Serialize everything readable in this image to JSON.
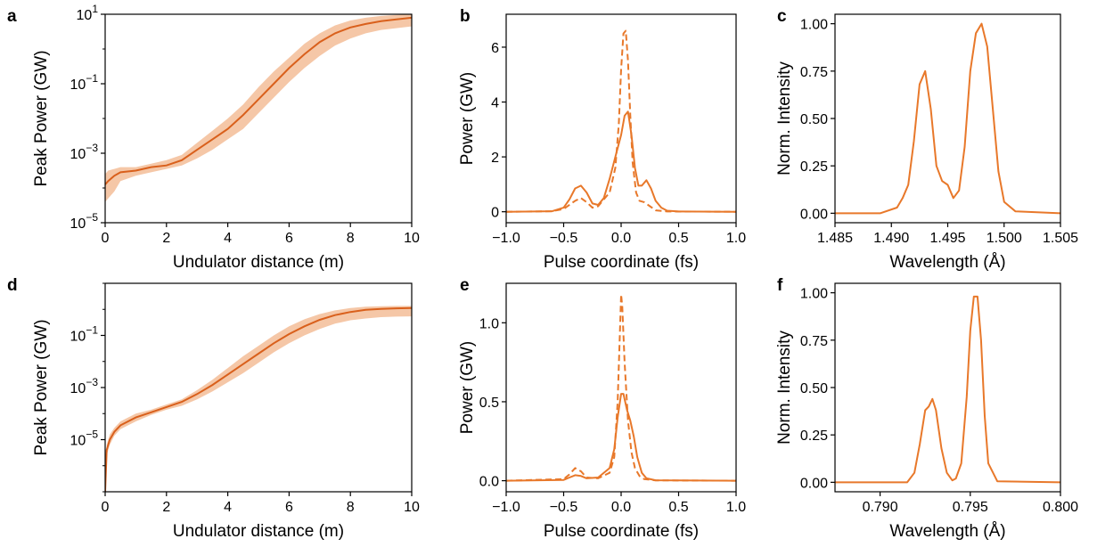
{
  "colors": {
    "line": "#e8782a",
    "band": "#f2b48a",
    "axis": "#000000"
  },
  "chart_data": [
    {
      "id": "a",
      "type": "line",
      "letter": "a",
      "xlabel": "Undulator distance (m)",
      "ylabel": "Peak Power (GW)",
      "xlim": [
        0,
        10
      ],
      "yscale": "log",
      "ylim_exp": [
        -5,
        1
      ],
      "xticks": [
        0,
        2,
        4,
        6,
        8,
        10
      ],
      "xtick_labels": [
        "0",
        "2",
        "4",
        "6",
        "8",
        "10"
      ],
      "yticks_exp": [
        -5,
        -3,
        -1,
        1
      ],
      "ytick_labels": [
        [
          "10",
          "−5"
        ],
        [
          "10",
          "−3"
        ],
        [
          "10",
          "−1"
        ],
        [
          "10",
          "1"
        ]
      ],
      "series": [
        {
          "style": "band-line",
          "x": [
            0,
            0.1,
            0.3,
            0.5,
            1,
            1.5,
            2,
            2.5,
            3,
            3.5,
            4,
            4.5,
            5,
            5.5,
            6,
            6.5,
            7,
            7.5,
            8,
            8.5,
            9,
            9.5,
            10
          ],
          "y_exp": [
            -3.9,
            -3.8,
            -3.65,
            -3.55,
            -3.5,
            -3.4,
            -3.35,
            -3.2,
            -2.9,
            -2.6,
            -2.3,
            -1.9,
            -1.45,
            -1.0,
            -0.55,
            -0.15,
            0.2,
            0.45,
            0.62,
            0.72,
            0.8,
            0.85,
            0.9
          ],
          "lo_exp": [
            -4.4,
            -4.3,
            -4.1,
            -3.8,
            -3.65,
            -3.55,
            -3.45,
            -3.35,
            -3.15,
            -2.9,
            -2.6,
            -2.3,
            -1.85,
            -1.4,
            -0.95,
            -0.55,
            -0.2,
            0.1,
            0.3,
            0.45,
            0.55,
            0.6,
            0.65
          ],
          "hi_exp": [
            -3.6,
            -3.5,
            -3.45,
            -3.4,
            -3.4,
            -3.3,
            -3.2,
            -3.05,
            -2.7,
            -2.35,
            -2.0,
            -1.6,
            -1.1,
            -0.65,
            -0.25,
            0.15,
            0.45,
            0.68,
            0.82,
            0.9,
            0.95,
            0.98,
            1.0
          ]
        }
      ]
    },
    {
      "id": "b",
      "type": "line",
      "letter": "b",
      "xlabel": "Pulse coordinate (fs)",
      "ylabel": "Power (GW)",
      "xlim": [
        -1,
        1
      ],
      "ylim": [
        -0.4,
        7.2
      ],
      "xticks": [
        -1,
        -0.5,
        0,
        0.5,
        1
      ],
      "xtick_labels": [
        "−1.0",
        "−0.5",
        "0.0",
        "0.5",
        "1.0"
      ],
      "yticks": [
        0,
        2,
        4,
        6
      ],
      "ytick_labels": [
        "0",
        "2",
        "4",
        "6"
      ],
      "series": [
        {
          "style": "solid",
          "x": [
            -1.0,
            -0.6,
            -0.5,
            -0.45,
            -0.4,
            -0.35,
            -0.3,
            -0.25,
            -0.2,
            -0.15,
            -0.1,
            -0.05,
            0.0,
            0.03,
            0.06,
            0.09,
            0.12,
            0.15,
            0.18,
            0.22,
            0.26,
            0.3,
            0.35,
            0.4,
            0.5,
            1.0
          ],
          "y": [
            0,
            0.02,
            0.15,
            0.45,
            0.85,
            0.95,
            0.7,
            0.3,
            0.25,
            0.5,
            1.2,
            2.0,
            2.8,
            3.5,
            3.65,
            2.8,
            1.6,
            0.95,
            0.95,
            1.15,
            0.85,
            0.4,
            0.15,
            0.04,
            0.01,
            0
          ]
        },
        {
          "style": "dashed",
          "x": [
            -1.0,
            -0.6,
            -0.5,
            -0.4,
            -0.35,
            -0.3,
            -0.25,
            -0.2,
            -0.1,
            -0.05,
            -0.02,
            0.0,
            0.02,
            0.04,
            0.06,
            0.08,
            0.1,
            0.13,
            0.16,
            0.2,
            0.25,
            0.3,
            0.4,
            1.0
          ],
          "y": [
            0,
            0.02,
            0.1,
            0.4,
            0.5,
            0.35,
            0.15,
            0.2,
            0.7,
            1.6,
            3.2,
            5.2,
            6.5,
            6.6,
            5.5,
            3.5,
            1.8,
            0.7,
            0.4,
            0.35,
            0.2,
            0.05,
            0.01,
            0
          ]
        }
      ]
    },
    {
      "id": "c",
      "type": "line",
      "letter": "c",
      "xlabel": "Wavelength (Å)",
      "ylabel": "Norm. Intensity",
      "xlim": [
        1.485,
        1.505
      ],
      "ylim": [
        -0.05,
        1.05
      ],
      "xticks": [
        1.485,
        1.49,
        1.495,
        1.5,
        1.505
      ],
      "xtick_labels": [
        "1.485",
        "1.490",
        "1.495",
        "1.500",
        "1.505"
      ],
      "yticks": [
        0,
        0.25,
        0.5,
        0.75,
        1.0
      ],
      "ytick_labels": [
        "0.00",
        "0.25",
        "0.50",
        "0.75",
        "1.00"
      ],
      "series": [
        {
          "style": "solid",
          "x": [
            1.485,
            1.489,
            1.4905,
            1.491,
            1.4915,
            1.492,
            1.4925,
            1.493,
            1.4935,
            1.494,
            1.4945,
            1.495,
            1.4955,
            1.496,
            1.4965,
            1.497,
            1.4975,
            1.498,
            1.4985,
            1.499,
            1.4995,
            1.5,
            1.501,
            1.505
          ],
          "y": [
            0,
            0.0,
            0.03,
            0.08,
            0.15,
            0.38,
            0.68,
            0.75,
            0.55,
            0.25,
            0.17,
            0.15,
            0.08,
            0.12,
            0.35,
            0.75,
            0.95,
            1.0,
            0.88,
            0.55,
            0.22,
            0.06,
            0.01,
            0
          ]
        }
      ]
    },
    {
      "id": "d",
      "type": "line",
      "letter": "d",
      "xlabel": "Undulator distance (m)",
      "ylabel": "Peak Power (GW)",
      "xlim": [
        0,
        10
      ],
      "yscale": "log",
      "ylim_exp": [
        -7,
        1
      ],
      "xticks": [
        0,
        2,
        4,
        6,
        8,
        10
      ],
      "xtick_labels": [
        "0",
        "2",
        "4",
        "6",
        "8",
        "10"
      ],
      "yticks_exp": [
        -5,
        -3,
        -1
      ],
      "ytick_labels": [
        [
          "10",
          "−5"
        ],
        [
          "10",
          "−3"
        ],
        [
          "10",
          "−1"
        ]
      ],
      "series": [
        {
          "style": "band-line",
          "x": [
            0,
            0.05,
            0.15,
            0.3,
            0.5,
            1,
            1.5,
            2,
            2.5,
            3,
            3.5,
            4,
            4.5,
            5,
            5.5,
            6,
            6.5,
            7,
            7.5,
            8,
            8.5,
            9,
            9.5,
            10
          ],
          "y_exp": [
            -7,
            -5.4,
            -5.0,
            -4.7,
            -4.45,
            -4.15,
            -3.95,
            -3.75,
            -3.55,
            -3.25,
            -2.9,
            -2.5,
            -2.1,
            -1.7,
            -1.3,
            -0.95,
            -0.65,
            -0.4,
            -0.22,
            -0.1,
            -0.02,
            0.02,
            0.04,
            0.05
          ],
          "lo_exp": [
            -7,
            -5.6,
            -5.2,
            -4.85,
            -4.6,
            -4.3,
            -4.05,
            -3.85,
            -3.7,
            -3.45,
            -3.15,
            -2.8,
            -2.45,
            -2.05,
            -1.65,
            -1.3,
            -1.0,
            -0.75,
            -0.55,
            -0.42,
            -0.35,
            -0.3,
            -0.28,
            -0.27
          ],
          "hi_exp": [
            -7,
            -5.2,
            -4.8,
            -4.55,
            -4.3,
            -4.0,
            -3.85,
            -3.65,
            -3.45,
            -3.1,
            -2.7,
            -2.25,
            -1.8,
            -1.4,
            -1.0,
            -0.65,
            -0.38,
            -0.18,
            -0.04,
            0.05,
            0.1,
            0.12,
            0.13,
            0.13
          ]
        }
      ]
    },
    {
      "id": "e",
      "type": "line",
      "letter": "e",
      "xlabel": "Pulse coordinate (fs)",
      "ylabel": "Power (GW)",
      "xlim": [
        -1,
        1
      ],
      "ylim": [
        -0.07,
        1.25
      ],
      "xticks": [
        -1,
        -0.5,
        0,
        0.5,
        1
      ],
      "xtick_labels": [
        "−1.0",
        "−0.5",
        "0.0",
        "0.5",
        "1.0"
      ],
      "yticks": [
        0,
        0.5,
        1.0
      ],
      "ytick_labels": [
        "0.0",
        "0.5",
        "1.0"
      ],
      "series": [
        {
          "style": "solid",
          "x": [
            -1.0,
            -0.5,
            -0.45,
            -0.4,
            -0.35,
            -0.3,
            -0.2,
            -0.1,
            -0.06,
            -0.03,
            0.0,
            0.02,
            0.05,
            0.08,
            0.11,
            0.14,
            0.18,
            0.22,
            0.3,
            1.0
          ],
          "y": [
            0,
            0.005,
            0.02,
            0.035,
            0.03,
            0.015,
            0.02,
            0.08,
            0.2,
            0.4,
            0.55,
            0.55,
            0.45,
            0.38,
            0.28,
            0.15,
            0.05,
            0.015,
            0.003,
            0
          ]
        },
        {
          "style": "dashed",
          "x": [
            -1.0,
            -0.5,
            -0.45,
            -0.4,
            -0.35,
            -0.3,
            -0.2,
            -0.1,
            -0.06,
            -0.03,
            -0.01,
            0.0,
            0.01,
            0.03,
            0.06,
            0.09,
            0.12,
            0.16,
            0.2,
            0.3,
            1.0
          ],
          "y": [
            0,
            0.01,
            0.04,
            0.08,
            0.06,
            0.02,
            0.015,
            0.05,
            0.15,
            0.5,
            0.95,
            1.18,
            1.1,
            0.75,
            0.38,
            0.18,
            0.08,
            0.03,
            0.01,
            0.002,
            0
          ]
        }
      ]
    },
    {
      "id": "f",
      "type": "line",
      "letter": "f",
      "xlabel": "Wavelength (Å)",
      "ylabel": "Norm. Intensity",
      "xlim": [
        0.7875,
        0.8
      ],
      "ylim": [
        -0.05,
        1.05
      ],
      "xticks": [
        0.79,
        0.795,
        0.8
      ],
      "xtick_labels": [
        "0.790",
        "0.795",
        "0.800"
      ],
      "yticks": [
        0,
        0.25,
        0.5,
        0.75,
        1.0
      ],
      "ytick_labels": [
        "0.00",
        "0.25",
        "0.50",
        "0.75",
        "1.00"
      ],
      "series": [
        {
          "style": "solid",
          "x": [
            0.7875,
            0.7915,
            0.7919,
            0.7922,
            0.7925,
            0.7927,
            0.7929,
            0.7931,
            0.7934,
            0.7937,
            0.794,
            0.7942,
            0.7945,
            0.7948,
            0.795,
            0.7952,
            0.7954,
            0.7956,
            0.7958,
            0.796,
            0.7965,
            0.8
          ],
          "y": [
            0,
            0.0,
            0.05,
            0.2,
            0.38,
            0.4,
            0.44,
            0.38,
            0.18,
            0.05,
            0.01,
            0.02,
            0.1,
            0.45,
            0.8,
            0.98,
            0.98,
            0.75,
            0.35,
            0.1,
            0.005,
            0
          ]
        }
      ]
    }
  ]
}
